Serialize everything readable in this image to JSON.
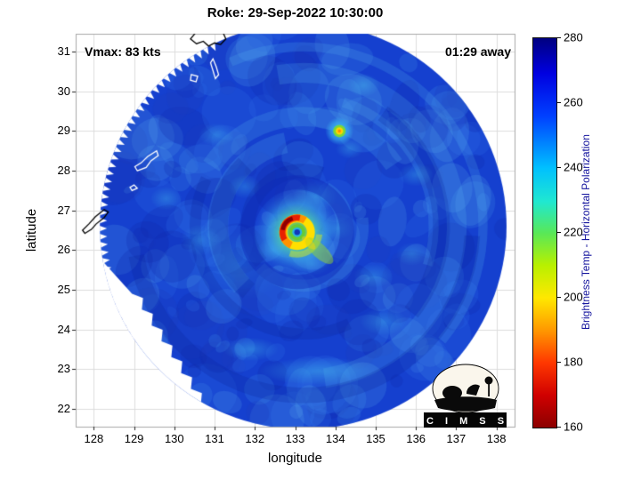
{
  "chart_data": {
    "type": "heatmap",
    "title": "Roke: 29-Sep-2022 10:30:00",
    "storm_name": "Roke",
    "timestamp": "29-Sep-2022 10:30:00",
    "xlabel": "longitude",
    "ylabel": "latitude",
    "xlim": [
      127.55,
      138.45
    ],
    "ylim": [
      21.55,
      31.45
    ],
    "x_ticks": [
      128,
      129,
      130,
      131,
      132,
      133,
      134,
      135,
      136,
      137,
      138
    ],
    "y_ticks": [
      22,
      23,
      24,
      25,
      26,
      27,
      28,
      29,
      30,
      31
    ],
    "grid": true,
    "annotations": {
      "vmax": "Vmax: 83 kts",
      "time_away": "01:29 away"
    },
    "colorbar": {
      "label": "Brightness Temp - Horizontal Polarization",
      "min": 160,
      "max": 280,
      "ticks": [
        160,
        180,
        200,
        220,
        240,
        260,
        280
      ],
      "stops": [
        {
          "p": 0.0,
          "c": "#000080"
        },
        {
          "p": 0.09,
          "c": "#0000e0"
        },
        {
          "p": 0.2,
          "c": "#0040ff"
        },
        {
          "p": 0.333,
          "c": "#00c0ff"
        },
        {
          "p": 0.42,
          "c": "#20e8d0"
        },
        {
          "p": 0.5,
          "c": "#58e858"
        },
        {
          "p": 0.583,
          "c": "#b8f000"
        },
        {
          "p": 0.667,
          "c": "#ffe800"
        },
        {
          "p": 0.75,
          "c": "#ff9800"
        },
        {
          "p": 0.833,
          "c": "#ff3800"
        },
        {
          "p": 0.917,
          "c": "#d00000"
        },
        {
          "p": 1.0,
          "c": "#8c0000"
        }
      ]
    },
    "swath": {
      "center_lon": 133.2,
      "center_lat": 26.6,
      "radius_deg": 5.05,
      "background_temp_k": 257
    },
    "storm": {
      "eye_lon": 133.05,
      "eye_lat": 26.45,
      "eye_temp_k": 272,
      "eyewall_min_temp_k": 165
    },
    "hot_spot": {
      "lon": 134.1,
      "lat": 29.0,
      "min_temp_k": 200
    },
    "cold_bands": [
      [
        133.5,
        27.35,
        0.55,
        0.4,
        0.45
      ],
      [
        132.45,
        26.0,
        0.4,
        0.3,
        0.4
      ],
      [
        133.4,
        25.65,
        0.5,
        0.3,
        0.4
      ],
      [
        134.05,
        26.55,
        0.4,
        0.3,
        0.35
      ],
      [
        133.6,
        22.95,
        1.5,
        0.35,
        0.4
      ],
      [
        131.9,
        23.5,
        0.7,
        0.3,
        0.35
      ],
      [
        135.2,
        24.2,
        0.6,
        0.35,
        0.3
      ],
      [
        130.65,
        26.25,
        0.5,
        0.4,
        0.3
      ],
      [
        136.0,
        27.9,
        0.45,
        0.3,
        0.3
      ],
      [
        134.7,
        30.15,
        0.4,
        0.3,
        0.35
      ],
      [
        131.05,
        28.9,
        0.45,
        0.3,
        0.3
      ],
      [
        134.35,
        28.55,
        0.35,
        0.25,
        0.3
      ],
      [
        131.75,
        27.6,
        0.4,
        0.3,
        0.28
      ],
      [
        134.95,
        25.35,
        0.5,
        0.3,
        0.28
      ],
      [
        135.9,
        25.9,
        0.4,
        0.3,
        0.25
      ],
      [
        129.8,
        27.3,
        0.4,
        0.3,
        0.3
      ],
      [
        131.6,
        25.6,
        1.2,
        0.9,
        0.16
      ]
    ],
    "coastlines": [
      {
        "ink": "#000",
        "pts": [
          [
            130.4,
            31.32
          ],
          [
            130.55,
            31.2
          ],
          [
            130.72,
            31.26
          ],
          [
            130.85,
            31.14
          ],
          [
            131.0,
            31.22
          ],
          [
            131.15,
            31.18
          ],
          [
            131.28,
            31.32
          ],
          [
            131.2,
            31.5
          ],
          [
            130.55,
            31.5
          ]
        ]
      },
      {
        "ink": "#fff",
        "pts": [
          [
            130.96,
            30.82
          ],
          [
            131.04,
            30.62
          ],
          [
            131.1,
            30.42
          ],
          [
            131.02,
            30.32
          ],
          [
            130.96,
            30.52
          ],
          [
            130.9,
            30.72
          ]
        ]
      },
      {
        "ink": "#fff",
        "pts": [
          [
            130.42,
            30.42
          ],
          [
            130.58,
            30.38
          ],
          [
            130.54,
            30.24
          ],
          [
            130.4,
            30.28
          ]
        ]
      },
      {
        "ink": "#fff",
        "pts": [
          [
            129.08,
            28.0
          ],
          [
            129.3,
            28.08
          ],
          [
            129.42,
            28.25
          ],
          [
            129.6,
            28.38
          ],
          [
            129.56,
            28.5
          ],
          [
            129.34,
            28.36
          ],
          [
            129.18,
            28.2
          ],
          [
            129.02,
            28.1
          ]
        ]
      },
      {
        "ink": "#fff",
        "pts": [
          [
            128.95,
            27.5
          ],
          [
            129.08,
            27.56
          ],
          [
            129.0,
            27.64
          ],
          [
            128.9,
            27.58
          ]
        ]
      },
      {
        "ink": "#000",
        "pts": [
          [
            127.78,
            26.42
          ],
          [
            127.94,
            26.52
          ],
          [
            128.06,
            26.66
          ],
          [
            128.26,
            26.82
          ],
          [
            128.36,
            26.96
          ],
          [
            128.26,
            27.02
          ],
          [
            128.04,
            26.84
          ],
          [
            127.88,
            26.66
          ],
          [
            127.72,
            26.5
          ]
        ]
      }
    ]
  },
  "logo": {
    "text": "C I M S S"
  }
}
